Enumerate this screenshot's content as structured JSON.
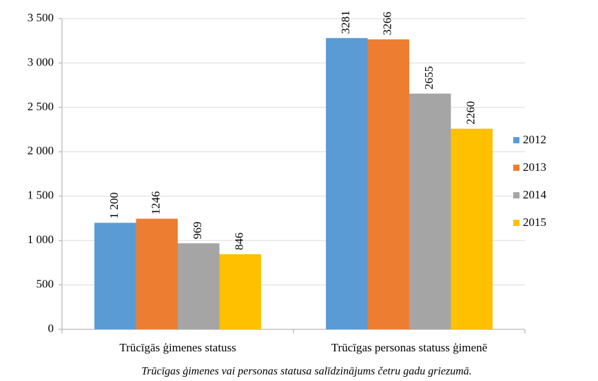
{
  "chart_data": {
    "type": "bar",
    "caption": "Trūcīgas ģimenes vai personas statusa salīdzinājums četru gadu griezumā.",
    "categories": [
      "Trūcīgās ģimenes statuss",
      "Trūcīgas personas statuss ģimenē"
    ],
    "series": [
      {
        "name": "2012",
        "color": "#5b9bd5",
        "values": [
          1200,
          3281
        ],
        "value_labels": [
          "1 200",
          "3281"
        ]
      },
      {
        "name": "2013",
        "color": "#ed7d31",
        "values": [
          1246,
          3266
        ]
      },
      {
        "name": "2014",
        "color": "#a5a5a5",
        "values": [
          969,
          2655
        ]
      },
      {
        "name": "2015",
        "color": "#ffc000",
        "values": [
          846,
          2260
        ]
      }
    ],
    "ylim": [
      0,
      3500
    ],
    "yticks": [
      0,
      500,
      {
        "value": 1000,
        "label": "1 000"
      },
      {
        "value": 1500,
        "label": "1 500"
      },
      {
        "value": 2000,
        "label": "2 000"
      },
      {
        "value": 2500,
        "label": "2 500"
      },
      {
        "value": 3000,
        "label": "3 000"
      },
      {
        "value": 3500,
        "label": "3 500"
      }
    ],
    "grid": true,
    "legend": "right"
  }
}
